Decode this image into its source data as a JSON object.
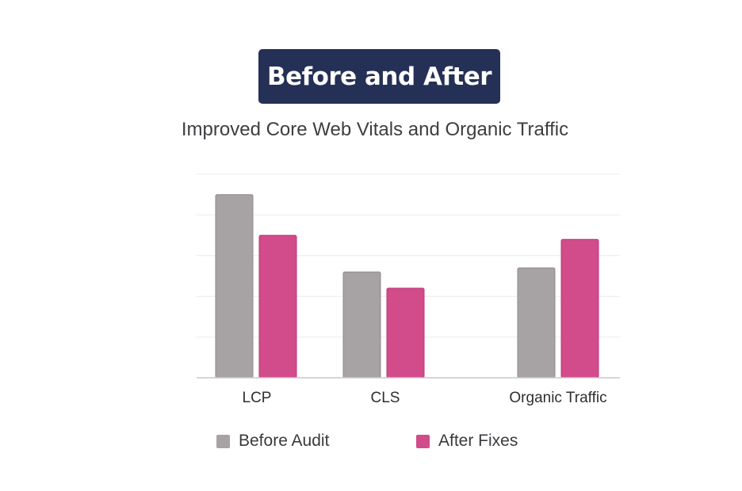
{
  "chart_data": {
    "type": "bar",
    "title": "Before and After",
    "subtitle": "Improved Core Web Vitals and Organic Traffic",
    "categories": [
      "LCP",
      "CLS",
      "Organic Traffic"
    ],
    "series": [
      {
        "name": "Before Audit",
        "color": "#a7a2a4",
        "values": [
          4.5,
          2.6,
          2.7
        ]
      },
      {
        "name": "After Fixes",
        "color": "#d24b8a",
        "values": [
          3.5,
          2.2,
          3.4
        ]
      }
    ],
    "ylim": [
      0,
      5
    ],
    "grid": true,
    "legend": "bottom",
    "xlabel": "",
    "ylabel": ""
  }
}
